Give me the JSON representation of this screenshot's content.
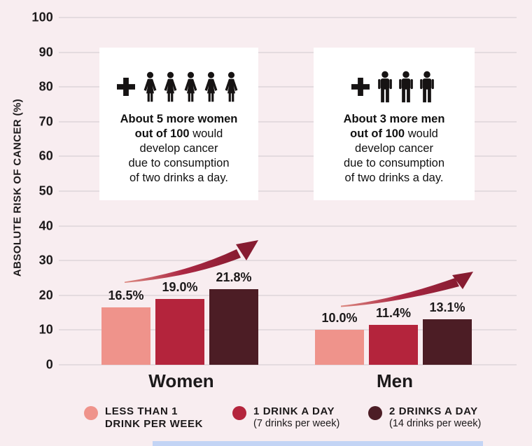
{
  "chart_data": {
    "type": "bar",
    "title": "",
    "xlabel": "",
    "ylabel": "ABSOLUTE RISK OF CANCER (%)",
    "ylim": [
      0,
      100
    ],
    "yticks": [
      0,
      10,
      20,
      30,
      40,
      50,
      60,
      70,
      80,
      90,
      100
    ],
    "grid": true,
    "legend_position": "bottom",
    "categories": [
      "Women",
      "Men"
    ],
    "series": [
      {
        "name": "LESS THAN 1 DRINK PER WEEK",
        "color": "#ef938b",
        "values": [
          16.5,
          10.0
        ],
        "labels": [
          "16.5%",
          "10.0%"
        ]
      },
      {
        "name": "1 DRINK A DAY (7 drinks per week)",
        "color": "#b4243c",
        "values": [
          19.0,
          11.4
        ],
        "labels": [
          "19.0%",
          "11.4%"
        ]
      },
      {
        "name": "2 DRINKS A DAY (14 drinks per week)",
        "color": "#4c1d25",
        "values": [
          21.8,
          13.1
        ],
        "labels": [
          "21.8%",
          "13.1%"
        ]
      }
    ],
    "annotations": [
      "About 5 more women out of 100 would develop cancer due to consumption of two drinks a day.",
      "About 3 more men out of 100 would develop cancer due to consumption of two drinks a day."
    ]
  },
  "cards": [
    {
      "group": "women",
      "people": 5,
      "icon": "woman-icon",
      "plus": "+",
      "line1_bold": "About 5 more women",
      "line2_bold": "out of 100",
      "line2_rest": " would",
      "line3": "develop cancer",
      "line4": "due to consumption",
      "line5": "of two drinks a day."
    },
    {
      "group": "men",
      "people": 3,
      "icon": "man-icon",
      "plus": "+",
      "line1_bold": "About 3 more men",
      "line2_bold": "out of 100",
      "line2_rest": " would",
      "line3": "develop cancer",
      "line4": "due to consumption",
      "line5": "of two drinks a day."
    }
  ],
  "legend": {
    "items": [
      {
        "color": "#ef938b",
        "line1": "LESS THAN 1",
        "line2": "DRINK PER WEEK"
      },
      {
        "color": "#b4243c",
        "line1": "1 DRINK A DAY",
        "line2": "(7 drinks per week)"
      },
      {
        "color": "#4c1d25",
        "line1": "2 DRINKS A DAY",
        "line2": "(14 drinks per week)"
      }
    ]
  },
  "colors": {
    "background": "#f8edf0",
    "gridline": "#e4dbdf",
    "card": "#ffffff",
    "text": "#1c191a",
    "arrow_light": "#dd8a81",
    "arrow_mid": "#ab2743",
    "arrow_dark": "#871c31",
    "bottom_strip": "#c3d4f5"
  }
}
